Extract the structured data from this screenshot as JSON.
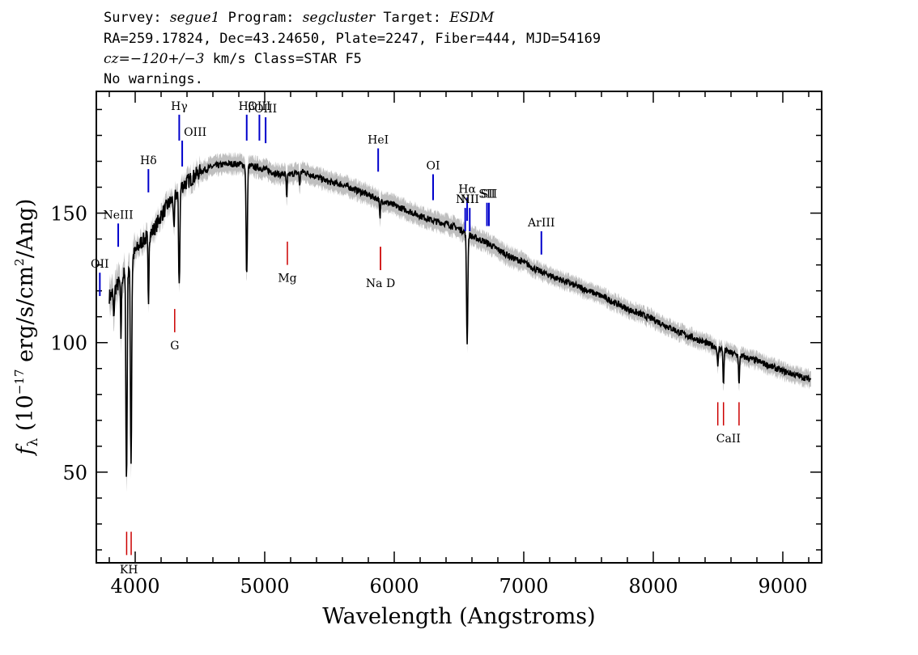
{
  "header": {
    "line1": {
      "survey_label": "Survey: ",
      "survey": "segue1",
      "program_label": " Program: ",
      "program": "segcluster",
      "target_label": " Target: ",
      "target": "ESDM"
    },
    "line2": "RA=259.17824, Dec=43.24650, Plate=2247, Fiber=444, MJD=54169",
    "line3": {
      "cz": "cz=−120+/−3",
      "rest": " km/s Class=STAR F5"
    },
    "line4": "No warnings."
  },
  "chart_data": {
    "type": "line",
    "xlabel": "Wavelength (Angstroms)",
    "ylabel_prefix": "f",
    "ylabel_sub": "λ",
    "ylabel_main": " (10",
    "ylabel_exp": "−17",
    "ylabel_mid": " erg/s/cm",
    "ylabel_exp2": "2",
    "ylabel_end": "/Ang)",
    "xlim": [
      3700,
      9300
    ],
    "ylim": [
      15,
      197
    ],
    "x_ticks": [
      4000,
      5000,
      6000,
      7000,
      8000,
      9000
    ],
    "x_tick_labels": [
      "4000",
      "5000",
      "6000",
      "7000",
      "8000",
      "9000"
    ],
    "y_ticks": [
      50,
      100,
      150
    ],
    "y_tick_labels": [
      "50",
      "100",
      "150"
    ],
    "grid": false,
    "colors": {
      "spectrum": "#000000",
      "error_band": "#bfbfbf",
      "emission": "#0000cc",
      "absorption": "#cc0000"
    },
    "continuum": [
      [
        3810,
        118
      ],
      [
        3860,
        122
      ],
      [
        3900,
        125
      ],
      [
        3950,
        130
      ],
      [
        4000,
        135
      ],
      [
        4050,
        139
      ],
      [
        4100,
        141
      ],
      [
        4150,
        144
      ],
      [
        4200,
        149
      ],
      [
        4250,
        153
      ],
      [
        4300,
        156
      ],
      [
        4350,
        160
      ],
      [
        4400,
        162
      ],
      [
        4450,
        164
      ],
      [
        4500,
        166
      ],
      [
        4600,
        168
      ],
      [
        4700,
        169
      ],
      [
        4800,
        169
      ],
      [
        4900,
        168
      ],
      [
        5000,
        167
      ],
      [
        5100,
        165
      ],
      [
        5200,
        165
      ],
      [
        5300,
        166
      ],
      [
        5400,
        164
      ],
      [
        5500,
        162
      ],
      [
        5600,
        161
      ],
      [
        5700,
        159
      ],
      [
        5800,
        157
      ],
      [
        5900,
        155
      ],
      [
        6000,
        153
      ],
      [
        6100,
        151
      ],
      [
        6200,
        149
      ],
      [
        6300,
        147
      ],
      [
        6400,
        146
      ],
      [
        6500,
        144
      ],
      [
        6600,
        141
      ],
      [
        6700,
        139
      ],
      [
        6800,
        136
      ],
      [
        6900,
        133
      ],
      [
        7000,
        131
      ],
      [
        7100,
        128
      ],
      [
        7200,
        126
      ],
      [
        7400,
        122
      ],
      [
        7600,
        118
      ],
      [
        7800,
        113
      ],
      [
        8000,
        109
      ],
      [
        8200,
        104
      ],
      [
        8400,
        100
      ],
      [
        8600,
        96
      ],
      [
        8800,
        93
      ],
      [
        9000,
        89
      ],
      [
        9200,
        86
      ]
    ],
    "absorption_dips": [
      [
        3835,
        12
      ],
      [
        3890,
        22
      ],
      [
        3933,
        82
      ],
      [
        3968,
        78
      ],
      [
        4102,
        26
      ],
      [
        4300,
        15
      ],
      [
        4340,
        36
      ],
      [
        4861,
        43
      ],
      [
        5170,
        10
      ],
      [
        5270,
        5
      ],
      [
        5890,
        8
      ],
      [
        6563,
        42
      ],
      [
        8498,
        8
      ],
      [
        8542,
        14
      ],
      [
        8662,
        12
      ]
    ],
    "annotations": {
      "emission": [
        {
          "label": "OII",
          "wavelength": 3727,
          "y_top": 127,
          "y_bottom": 118
        },
        {
          "label": "NeIII",
          "wavelength": 3869,
          "y_top": 146,
          "y_bottom": 137
        },
        {
          "label": "Hδ",
          "wavelength": 4102,
          "y_top": 167,
          "y_bottom": 158
        },
        {
          "label": "Hγ",
          "wavelength": 4340,
          "y_top": 188,
          "y_bottom": 178
        },
        {
          "label": "OIII",
          "wavelength": 4363,
          "y_top": 178,
          "y_bottom": 168
        },
        {
          "label": "Hβ",
          "wavelength": 4861,
          "y_top": 188,
          "y_bottom": 178
        },
        {
          "label": "OIII",
          "wavelength": 4959,
          "y_top": 188,
          "y_bottom": 178
        },
        {
          "label": "OIII",
          "wavelength": 5007,
          "y_top": 187,
          "y_bottom": 177
        },
        {
          "label": "HeI",
          "wavelength": 5876,
          "y_top": 175,
          "y_bottom": 166
        },
        {
          "label": "OI",
          "wavelength": 6300,
          "y_top": 165,
          "y_bottom": 155
        },
        {
          "label": "NII",
          "wavelength": 6548,
          "y_top": 152,
          "y_bottom": 143
        },
        {
          "label": "Hα",
          "wavelength": 6563,
          "y_top": 156,
          "y_bottom": 147
        },
        {
          "label": "NII",
          "wavelength": 6583,
          "y_top": 152,
          "y_bottom": 143
        },
        {
          "label": "SII",
          "wavelength": 6716,
          "y_top": 154,
          "y_bottom": 145
        },
        {
          "label": "SII",
          "wavelength": 6731,
          "y_top": 154,
          "y_bottom": 145
        },
        {
          "label": "ArIII",
          "wavelength": 7136,
          "y_top": 143,
          "y_bottom": 134
        }
      ],
      "absorption": [
        {
          "label": "K",
          "wavelength": 3934,
          "y_top": 27,
          "y_bottom": 18
        },
        {
          "label": "H",
          "wavelength": 3969,
          "y_top": 27,
          "y_bottom": 18
        },
        {
          "label": "G",
          "wavelength": 4305,
          "y_top": 113,
          "y_bottom": 104
        },
        {
          "label": "Mg",
          "wavelength": 5175,
          "y_top": 139,
          "y_bottom": 130
        },
        {
          "label": "Na",
          "wavelength": 5894,
          "y_top": 137,
          "y_bottom": 128
        },
        {
          "label": "D",
          "wavelength": 5894,
          "y_top": 137,
          "y_bottom": 128
        },
        {
          "label": "CaII",
          "wavelength": 8498,
          "y_top": 77,
          "y_bottom": 68
        },
        {
          "label": "CaII",
          "wavelength": 8542,
          "y_top": 77,
          "y_bottom": 68
        },
        {
          "label": "CaII",
          "wavelength": 8662,
          "y_top": 77,
          "y_bottom": 68
        }
      ],
      "absorption_text_labels": [
        {
          "text": "KH",
          "wavelength": 3951,
          "y": 12.5
        },
        {
          "text": "G",
          "wavelength": 4305,
          "y": 99
        },
        {
          "text": "Mg",
          "wavelength": 5175,
          "y": 125
        },
        {
          "text": "Na  D",
          "wavelength": 5894,
          "y": 123
        },
        {
          "text": "CaII",
          "wavelength": 8580,
          "y": 63
        }
      ]
    }
  }
}
